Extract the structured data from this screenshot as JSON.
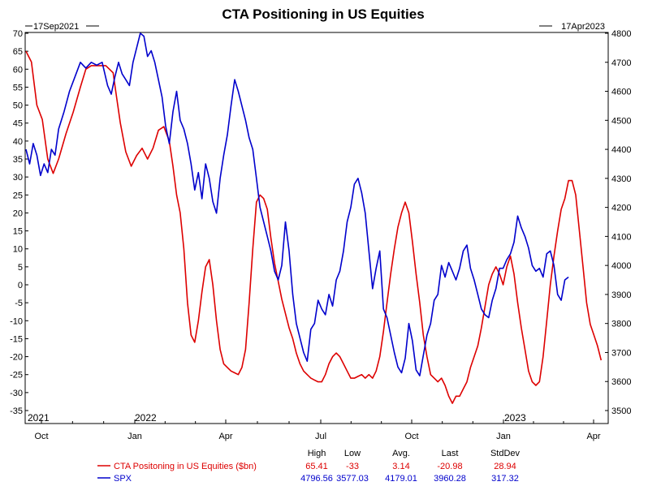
{
  "chart_data": {
    "type": "line",
    "title": "CTA Positioning in US Equities",
    "start_label": "17Sep2021",
    "end_label": "17Apr2023",
    "x_axis": {
      "month_labels": [
        "Oct",
        "Jan",
        "Apr",
        "Jul",
        "Oct",
        "Jan",
        "Apr"
      ],
      "year_labels": [
        "2021",
        "2022",
        "2023"
      ]
    },
    "y_left": {
      "min": -35,
      "max": 70,
      "step": 5,
      "ticks": [
        "70",
        "65",
        "60",
        "55",
        "50",
        "45",
        "40",
        "35",
        "30",
        "25",
        "20",
        "15",
        "10",
        "5",
        "0",
        "-5",
        "-10",
        "-15",
        "-20",
        "-25",
        "-30",
        "-35"
      ]
    },
    "y_right": {
      "min": 3500,
      "max": 4800,
      "step": 100,
      "ticks": [
        "4800",
        "4700",
        "4600",
        "4500",
        "4400",
        "4300",
        "4200",
        "4100",
        "4000",
        "3900",
        "3800",
        "3700",
        "3600",
        "3500"
      ]
    },
    "series": [
      {
        "name": "CTA Positioning in US Equities ($bn)",
        "color": "#dd0000",
        "axis": "left",
        "points": [
          [
            0,
            65
          ],
          [
            3,
            62
          ],
          [
            6,
            50
          ],
          [
            9,
            46
          ],
          [
            12,
            35
          ],
          [
            15,
            31
          ],
          [
            18,
            35
          ],
          [
            22,
            42
          ],
          [
            26,
            48
          ],
          [
            30,
            55
          ],
          [
            33,
            60
          ],
          [
            36,
            61
          ],
          [
            40,
            61
          ],
          [
            44,
            61
          ],
          [
            48,
            59
          ],
          [
            50,
            52
          ],
          [
            52,
            45
          ],
          [
            55,
            37
          ],
          [
            58,
            33
          ],
          [
            61,
            36
          ],
          [
            64,
            38
          ],
          [
            67,
            35
          ],
          [
            70,
            38
          ],
          [
            73,
            43
          ],
          [
            76,
            44
          ],
          [
            79,
            40
          ],
          [
            81,
            33
          ],
          [
            83,
            25
          ],
          [
            85,
            20
          ],
          [
            87,
            10
          ],
          [
            89,
            -5
          ],
          [
            91,
            -14
          ],
          [
            93,
            -16
          ],
          [
            95,
            -10
          ],
          [
            97,
            -2
          ],
          [
            99,
            5
          ],
          [
            101,
            7
          ],
          [
            103,
            0
          ],
          [
            105,
            -10
          ],
          [
            107,
            -18
          ],
          [
            109,
            -22
          ],
          [
            111,
            -23
          ],
          [
            113,
            -24
          ],
          [
            115,
            -24.5
          ],
          [
            117,
            -25
          ],
          [
            119,
            -23
          ],
          [
            121,
            -18
          ],
          [
            123,
            -5
          ],
          [
            125,
            10
          ],
          [
            127,
            23
          ],
          [
            129,
            25
          ],
          [
            131,
            24
          ],
          [
            133,
            21
          ],
          [
            135,
            13
          ],
          [
            137,
            6
          ],
          [
            139,
            1
          ],
          [
            141,
            -4
          ],
          [
            143,
            -8
          ],
          [
            145,
            -12
          ],
          [
            147,
            -15
          ],
          [
            149,
            -19
          ],
          [
            151,
            -22
          ],
          [
            153,
            -24
          ],
          [
            155,
            -25
          ],
          [
            157,
            -26
          ],
          [
            159,
            -26.5
          ],
          [
            161,
            -27
          ],
          [
            163,
            -27
          ],
          [
            165,
            -25
          ],
          [
            167,
            -22
          ],
          [
            169,
            -20
          ],
          [
            171,
            -19
          ],
          [
            173,
            -20
          ],
          [
            175,
            -22
          ],
          [
            177,
            -24
          ],
          [
            179,
            -26
          ],
          [
            181,
            -26
          ],
          [
            183,
            -25.5
          ],
          [
            185,
            -25
          ],
          [
            187,
            -26
          ],
          [
            189,
            -25
          ],
          [
            191,
            -26
          ],
          [
            193,
            -24
          ],
          [
            195,
            -20
          ],
          [
            197,
            -13
          ],
          [
            199,
            -5
          ],
          [
            201,
            3
          ],
          [
            203,
            10
          ],
          [
            205,
            16
          ],
          [
            207,
            20
          ],
          [
            209,
            23
          ],
          [
            211,
            20
          ],
          [
            213,
            12
          ],
          [
            215,
            3
          ],
          [
            217,
            -5
          ],
          [
            219,
            -14
          ],
          [
            221,
            -20
          ],
          [
            223,
            -25
          ],
          [
            225,
            -26
          ],
          [
            227,
            -27
          ],
          [
            229,
            -26
          ],
          [
            231,
            -28
          ],
          [
            233,
            -31
          ],
          [
            235,
            -33
          ],
          [
            237,
            -31
          ],
          [
            239,
            -31
          ],
          [
            241,
            -29
          ],
          [
            243,
            -27
          ],
          [
            245,
            -23
          ],
          [
            247,
            -20
          ],
          [
            249,
            -17
          ],
          [
            251,
            -12
          ],
          [
            253,
            -6
          ],
          [
            255,
            0
          ],
          [
            257,
            3
          ],
          [
            259,
            5
          ],
          [
            261,
            3
          ],
          [
            263,
            0
          ],
          [
            265,
            5
          ],
          [
            267,
            8
          ],
          [
            269,
            3
          ],
          [
            271,
            -5
          ],
          [
            273,
            -12
          ],
          [
            275,
            -18
          ],
          [
            277,
            -24
          ],
          [
            279,
            -27
          ],
          [
            281,
            -28
          ],
          [
            283,
            -27
          ],
          [
            285,
            -20
          ],
          [
            287,
            -10
          ],
          [
            289,
            0
          ],
          [
            291,
            8
          ],
          [
            293,
            15
          ],
          [
            295,
            21
          ],
          [
            297,
            24
          ],
          [
            299,
            29
          ],
          [
            301,
            29
          ],
          [
            303,
            25
          ],
          [
            305,
            15
          ],
          [
            307,
            5
          ],
          [
            309,
            -5
          ],
          [
            311,
            -11
          ],
          [
            313,
            -14
          ],
          [
            315,
            -17
          ],
          [
            317,
            -21
          ]
        ]
      },
      {
        "name": "SPX",
        "color": "#0000cc",
        "axis": "right",
        "points": [
          [
            0,
            4400
          ],
          [
            2,
            4350
          ],
          [
            4,
            4420
          ],
          [
            6,
            4380
          ],
          [
            8,
            4310
          ],
          [
            10,
            4350
          ],
          [
            12,
            4320
          ],
          [
            14,
            4400
          ],
          [
            16,
            4380
          ],
          [
            18,
            4470
          ],
          [
            21,
            4530
          ],
          [
            24,
            4600
          ],
          [
            27,
            4650
          ],
          [
            30,
            4700
          ],
          [
            33,
            4680
          ],
          [
            36,
            4700
          ],
          [
            39,
            4690
          ],
          [
            42,
            4700
          ],
          [
            45,
            4620
          ],
          [
            47,
            4590
          ],
          [
            49,
            4650
          ],
          [
            51,
            4700
          ],
          [
            53,
            4660
          ],
          [
            55,
            4640
          ],
          [
            57,
            4620
          ],
          [
            59,
            4700
          ],
          [
            61,
            4750
          ],
          [
            63,
            4800
          ],
          [
            65,
            4790
          ],
          [
            67,
            4720
          ],
          [
            69,
            4740
          ],
          [
            71,
            4700
          ],
          [
            73,
            4640
          ],
          [
            75,
            4580
          ],
          [
            77,
            4480
          ],
          [
            79,
            4420
          ],
          [
            81,
            4530
          ],
          [
            83,
            4600
          ],
          [
            85,
            4500
          ],
          [
            87,
            4470
          ],
          [
            89,
            4420
          ],
          [
            91,
            4350
          ],
          [
            93,
            4260
          ],
          [
            95,
            4320
          ],
          [
            97,
            4230
          ],
          [
            99,
            4350
          ],
          [
            101,
            4300
          ],
          [
            103,
            4220
          ],
          [
            105,
            4180
          ],
          [
            107,
            4300
          ],
          [
            109,
            4380
          ],
          [
            111,
            4450
          ],
          [
            113,
            4550
          ],
          [
            115,
            4640
          ],
          [
            117,
            4600
          ],
          [
            119,
            4550
          ],
          [
            121,
            4500
          ],
          [
            123,
            4440
          ],
          [
            125,
            4400
          ],
          [
            127,
            4300
          ],
          [
            129,
            4200
          ],
          [
            131,
            4150
          ],
          [
            133,
            4100
          ],
          [
            135,
            4050
          ],
          [
            137,
            3980
          ],
          [
            139,
            3950
          ],
          [
            141,
            4000
          ],
          [
            143,
            4150
          ],
          [
            145,
            4050
          ],
          [
            147,
            3900
          ],
          [
            149,
            3800
          ],
          [
            151,
            3750
          ],
          [
            153,
            3700
          ],
          [
            155,
            3670
          ],
          [
            157,
            3780
          ],
          [
            159,
            3800
          ],
          [
            161,
            3880
          ],
          [
            163,
            3850
          ],
          [
            165,
            3830
          ],
          [
            167,
            3900
          ],
          [
            169,
            3860
          ],
          [
            171,
            3950
          ],
          [
            173,
            3980
          ],
          [
            175,
            4050
          ],
          [
            177,
            4150
          ],
          [
            179,
            4200
          ],
          [
            181,
            4280
          ],
          [
            183,
            4300
          ],
          [
            185,
            4250
          ],
          [
            187,
            4180
          ],
          [
            189,
            4050
          ],
          [
            191,
            3920
          ],
          [
            193,
            3990
          ],
          [
            195,
            4050
          ],
          [
            197,
            3850
          ],
          [
            199,
            3820
          ],
          [
            201,
            3760
          ],
          [
            203,
            3700
          ],
          [
            205,
            3650
          ],
          [
            207,
            3630
          ],
          [
            209,
            3680
          ],
          [
            211,
            3800
          ],
          [
            213,
            3740
          ],
          [
            215,
            3640
          ],
          [
            217,
            3620
          ],
          [
            219,
            3690
          ],
          [
            221,
            3760
          ],
          [
            223,
            3800
          ],
          [
            225,
            3880
          ],
          [
            227,
            3900
          ],
          [
            229,
            4000
          ],
          [
            231,
            3960
          ],
          [
            233,
            4010
          ],
          [
            235,
            3980
          ],
          [
            237,
            3950
          ],
          [
            239,
            3990
          ],
          [
            241,
            4050
          ],
          [
            243,
            4070
          ],
          [
            245,
            3990
          ],
          [
            247,
            3950
          ],
          [
            249,
            3900
          ],
          [
            251,
            3850
          ],
          [
            253,
            3830
          ],
          [
            255,
            3820
          ],
          [
            257,
            3880
          ],
          [
            259,
            3920
          ],
          [
            261,
            3990
          ],
          [
            263,
            3990
          ],
          [
            265,
            4020
          ],
          [
            267,
            4040
          ],
          [
            269,
            4080
          ],
          [
            271,
            4170
          ],
          [
            273,
            4130
          ],
          [
            275,
            4100
          ],
          [
            277,
            4060
          ],
          [
            279,
            4000
          ],
          [
            281,
            3980
          ],
          [
            283,
            3990
          ],
          [
            285,
            3960
          ],
          [
            287,
            4040
          ],
          [
            289,
            4050
          ],
          [
            291,
            4000
          ],
          [
            293,
            3900
          ],
          [
            295,
            3880
          ],
          [
            297,
            3950
          ],
          [
            299,
            3960
          ]
        ]
      }
    ],
    "stats": {
      "headers": [
        "High",
        "Low",
        "Avg.",
        "Last",
        "StdDev"
      ],
      "rows": [
        {
          "name": "CTA Positoning in US Equities ($bn)",
          "color": "#dd0000",
          "values": [
            "65.41",
            "-33",
            "3.14",
            "-20.98",
            "28.94"
          ]
        },
        {
          "name": "SPX",
          "color": "#0000cc",
          "values": [
            "4796.56",
            "3577.03",
            "4179.01",
            "3960.28",
            "317.32"
          ]
        }
      ]
    }
  }
}
